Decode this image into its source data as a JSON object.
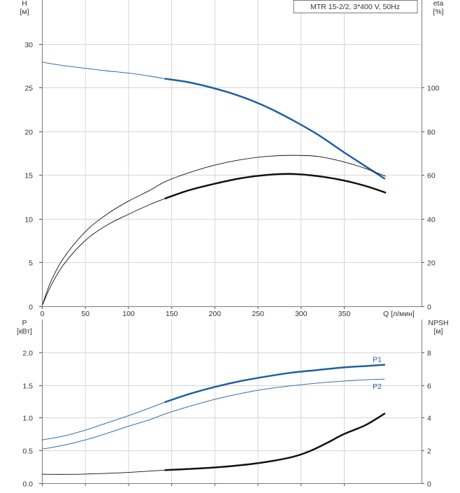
{
  "legend_box": "MTR 15-2/2, 3*400 V, 50Hz",
  "chart_data": [
    {
      "type": "line",
      "panel": "top",
      "xlabel": "Q [л/мин]",
      "ylabel_left": [
        "H",
        "[м]"
      ],
      "ylabel_right": [
        "eta",
        "[%]"
      ],
      "xlim": [
        0,
        440
      ],
      "ylim_left": [
        0,
        35
      ],
      "ylim_right": [
        0,
        140
      ],
      "xticks": [
        0,
        50,
        100,
        150,
        200,
        250,
        300,
        350
      ],
      "xtick_labels": [
        "0",
        "50",
        "100",
        "150",
        "200",
        "250",
        "300",
        "350"
      ],
      "yticks_left": [
        0,
        5,
        10,
        15,
        20,
        25,
        30
      ],
      "ytick_labels_left": [
        "0",
        "5",
        "10",
        "15",
        "20",
        "25",
        "30"
      ],
      "yticks_right": [
        0,
        20,
        40,
        60,
        80,
        100
      ],
      "ytick_labels_right": [
        "0",
        "20",
        "40",
        "60",
        "80",
        "100"
      ],
      "grid": true,
      "series": [
        {
          "label": "",
          "axis": "left",
          "color": "#1f5fa0",
          "thin_until": 143,
          "x": [
            0,
            25,
            50,
            75,
            100,
            125,
            143,
            170,
            200,
            230,
            260,
            290,
            320,
            350,
            375,
            397
          ],
          "y": [
            27.9,
            27.5,
            27.2,
            26.9,
            26.65,
            26.3,
            26.0,
            25.6,
            24.9,
            24.0,
            22.8,
            21.3,
            19.6,
            17.6,
            16.0,
            14.6
          ]
        },
        {
          "label": "",
          "axis": "right",
          "color": "#111111",
          "thin_until": 398,
          "x": [
            0,
            10,
            25,
            50,
            75,
            100,
            125,
            143,
            170,
            200,
            230,
            260,
            290,
            320,
            350,
            375,
            398
          ],
          "y": [
            0,
            11,
            22,
            34,
            42,
            48,
            53,
            57,
            61,
            64.5,
            67,
            68.5,
            69,
            68.5,
            66,
            63,
            59.5
          ]
        },
        {
          "label": "",
          "axis": "right",
          "color": "#111111",
          "thin_until": 143,
          "x": [
            0,
            10,
            25,
            50,
            75,
            100,
            125,
            143,
            170,
            200,
            230,
            260,
            290,
            320,
            350,
            375,
            398
          ],
          "y": [
            0,
            9,
            19,
            30,
            37,
            42,
            46.5,
            49.3,
            53,
            56,
            58.5,
            60,
            60.5,
            59.5,
            57.5,
            55,
            52
          ]
        }
      ]
    },
    {
      "type": "line",
      "panel": "bottom",
      "xlabel": "",
      "ylabel_left": [
        "P",
        "[кВт]"
      ],
      "ylabel_right": [
        "NPSH",
        "[м]"
      ],
      "xlim": [
        0,
        440
      ],
      "ylim_left": [
        0,
        2.5
      ],
      "ylim_right": [
        0,
        10
      ],
      "xticks": [
        0,
        50,
        100,
        150,
        200,
        250,
        300,
        350
      ],
      "yticks_left": [
        0.0,
        0.5,
        1.0,
        1.5,
        2.0
      ],
      "ytick_labels_left": [
        "0.0",
        "0.5",
        "1.0",
        "1.5",
        "2.0"
      ],
      "yticks_right": [
        0,
        2,
        4,
        6,
        8
      ],
      "ytick_labels_right": [
        "0",
        "2",
        "4",
        "6",
        "8"
      ],
      "grid": true,
      "series": [
        {
          "label": "P1",
          "axis": "left",
          "color": "#1f5fa0",
          "thin_until": 143,
          "x": [
            0,
            25,
            50,
            75,
            100,
            125,
            143,
            170,
            200,
            230,
            260,
            290,
            320,
            350,
            375,
            397
          ],
          "y": [
            0.66,
            0.72,
            0.81,
            0.92,
            1.03,
            1.15,
            1.24,
            1.36,
            1.47,
            1.56,
            1.63,
            1.69,
            1.73,
            1.77,
            1.79,
            1.81
          ]
        },
        {
          "label": "P2",
          "axis": "left",
          "color": "#1f5fa0",
          "thin_until": 397,
          "x": [
            0,
            25,
            50,
            75,
            100,
            125,
            143,
            170,
            200,
            230,
            260,
            290,
            320,
            350,
            375,
            397
          ],
          "y": [
            0.52,
            0.58,
            0.66,
            0.76,
            0.87,
            0.97,
            1.06,
            1.17,
            1.28,
            1.37,
            1.44,
            1.49,
            1.53,
            1.56,
            1.58,
            1.59
          ]
        },
        {
          "label": "",
          "axis": "right",
          "color": "#111111",
          "thin_until": 143,
          "x": [
            0,
            25,
            50,
            75,
            100,
            125,
            143,
            170,
            200,
            230,
            260,
            290,
            310,
            330,
            350,
            375,
            397
          ],
          "y": [
            0.55,
            0.54,
            0.56,
            0.6,
            0.66,
            0.74,
            0.8,
            0.87,
            0.96,
            1.1,
            1.3,
            1.6,
            1.95,
            2.45,
            3.0,
            3.55,
            4.25
          ]
        }
      ]
    }
  ]
}
